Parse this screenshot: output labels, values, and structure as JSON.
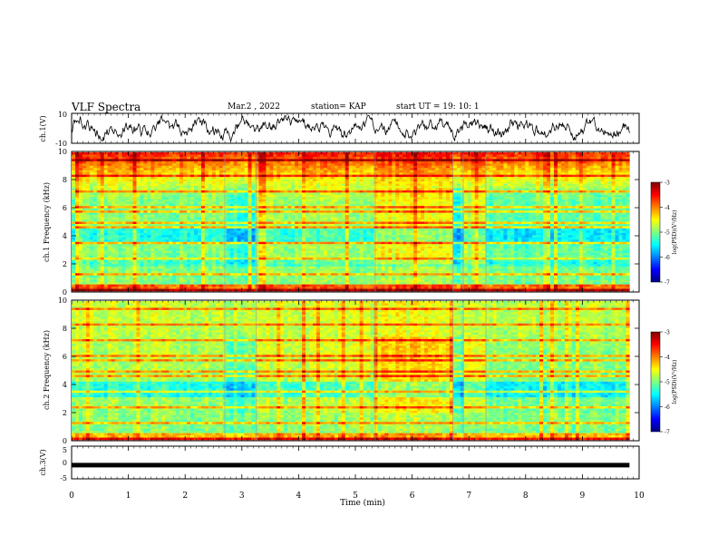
{
  "header": {
    "title": "VLF Spectra",
    "date": "Mar.2 , 2022",
    "station": "station= KAP",
    "start": "start UT = 19: 10: 1"
  },
  "chart_data": [
    {
      "type": "line",
      "panel": "ch1-waveform",
      "ylabel": "ch.1(V)",
      "ylim": [
        -10,
        10
      ],
      "yticks": [
        "10",
        "-10"
      ],
      "xlim": [
        0,
        10
      ],
      "line_color": "#000000"
    },
    {
      "type": "heatmap",
      "panel": "ch1-spectrogram",
      "ylabel": "ch.1 Frequency (kHz)",
      "ylim": [
        0,
        10
      ],
      "yticks": [
        "0",
        "2",
        "4",
        "6",
        "8",
        "10"
      ],
      "xlim": [
        0,
        9.83
      ],
      "segment_breaks_min": [
        2.7,
        3.25,
        5.35,
        6.72,
        6.9,
        7.3
      ],
      "colorbar": {
        "label": "log(PSD)(V²/Hz)",
        "range": [
          -7,
          -3
        ],
        "ticks": [
          "-3",
          "-4",
          "-5",
          "-6",
          "-7"
        ]
      }
    },
    {
      "type": "heatmap",
      "panel": "ch2-spectrogram",
      "ylabel": "ch.2 Frequency (kHz)",
      "ylim": [
        0,
        10
      ],
      "yticks": [
        "0",
        "2",
        "4",
        "6",
        "8",
        "10"
      ],
      "xlim": [
        0,
        9.83
      ],
      "segment_breaks_min": [
        2.7,
        3.25,
        5.35,
        6.72,
        6.9,
        7.3
      ],
      "colorbar": {
        "label": "log(PSD)(V²/Hz)",
        "range": [
          -7,
          -3
        ],
        "ticks": [
          "-3",
          "-4",
          "-5",
          "-6",
          "-7"
        ]
      }
    },
    {
      "type": "line",
      "panel": "ch3-waveform",
      "ylabel": "ch.3(V)",
      "ylim": [
        -5,
        5
      ],
      "yticks": [
        "5",
        "0",
        "-5"
      ],
      "xlim": [
        0,
        10
      ],
      "level_v": -1.0
    }
  ],
  "xaxis": {
    "label": "Time (min)",
    "ticks": [
      "0",
      "1",
      "2",
      "3",
      "4",
      "5",
      "6",
      "7",
      "8",
      "9",
      "10"
    ],
    "range": [
      0,
      10
    ]
  },
  "colors": {
    "jet": [
      "#00007f",
      "#0000ff",
      "#007fff",
      "#00ffff",
      "#7fff7f",
      "#ffff00",
      "#ff7f00",
      "#ff0000",
      "#7f0000"
    ]
  }
}
